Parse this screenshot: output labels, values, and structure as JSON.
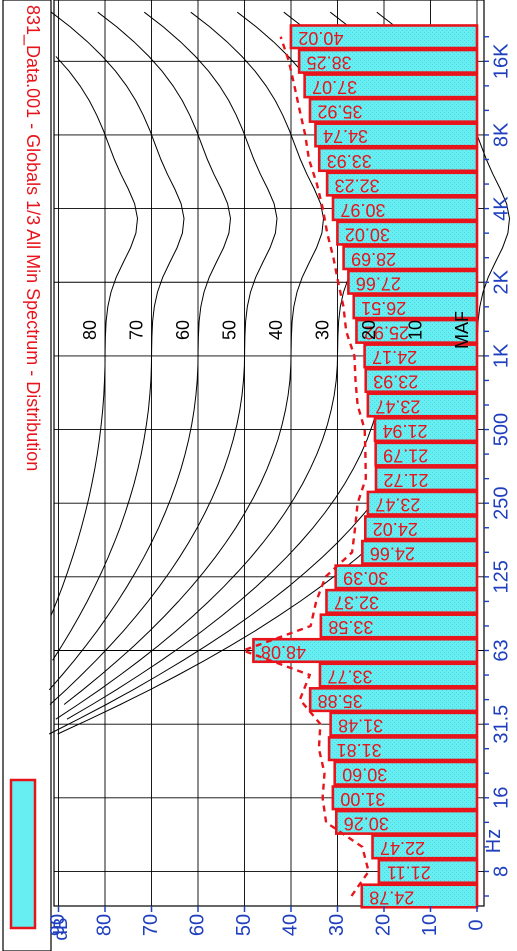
{
  "chart_data": {
    "type": "bar",
    "title": "831_Data.001 - Globals 1/3 All Min Spectrum - Distribution",
    "legend_label": "",
    "orientation": "rotated-90-clockwise",
    "x_axis": {
      "unit_label": "Hz",
      "tick_labels": [
        "8",
        "16",
        "31.5",
        "63",
        "125",
        "250",
        "500",
        "1K",
        "2K",
        "4K",
        "8K",
        "16K"
      ]
    },
    "y_axis": {
      "unit_label": "dB",
      "ylim": [
        0,
        90
      ],
      "tick_labels": [
        "0",
        "10",
        "20",
        "30",
        "40",
        "50",
        "60",
        "70",
        "80",
        "90"
      ]
    },
    "bands": [
      "6.3",
      "8",
      "10",
      "12.5",
      "16",
      "20",
      "25",
      "31.5",
      "40",
      "50",
      "63",
      "80",
      "100",
      "125",
      "160",
      "200",
      "250",
      "315",
      "400",
      "500",
      "630",
      "800",
      "1K",
      "1.25K",
      "1.6K",
      "2K",
      "2.5K",
      "3.15K",
      "4K",
      "5K",
      "6.3K",
      "8K",
      "10K",
      "12.5K",
      "16K",
      "20K"
    ],
    "values": [
      24.78,
      21.11,
      22.47,
      30.26,
      31.0,
      30.6,
      31.81,
      31.48,
      35.88,
      33.77,
      48.08,
      33.58,
      32.37,
      30.39,
      24.66,
      24.02,
      23.47,
      21.72,
      21.79,
      21.94,
      23.47,
      23.93,
      24.17,
      25.92,
      26.51,
      27.66,
      28.69,
      30.02,
      30.97,
      32.23,
      33.93,
      34.74,
      35.92,
      37.07,
      38.25,
      40.02
    ],
    "value_labels": [
      "24.78",
      "21.11",
      "22.47",
      "30.26",
      "31.00",
      "30.60",
      "31.81",
      "31.48",
      "35.88",
      "33.77",
      "48.08",
      "33.58",
      "32.37",
      "30.39",
      "24.66",
      "24.02",
      "23.47",
      "21.72",
      "21.79",
      "21.94",
      "23.47",
      "23.93",
      "24.17",
      "25.92",
      "26.51",
      "27.66",
      "28.69",
      "30.02",
      "30.97",
      "32.23",
      "33.93",
      "34.74",
      "35.92",
      "37.07",
      "38.25",
      "40.02"
    ],
    "contour_labels": [
      "80",
      "70",
      "60",
      "50",
      "40",
      "30",
      "20",
      "10",
      "MAF"
    ],
    "colors": {
      "bar_fill": "#66eef2",
      "bar_edge": "#e8141c",
      "label_text": "#e8141c",
      "axis_text": "#1f3fbf",
      "contour_line": "#000000",
      "dotted_curve": "#e8141c"
    },
    "grid": true
  }
}
